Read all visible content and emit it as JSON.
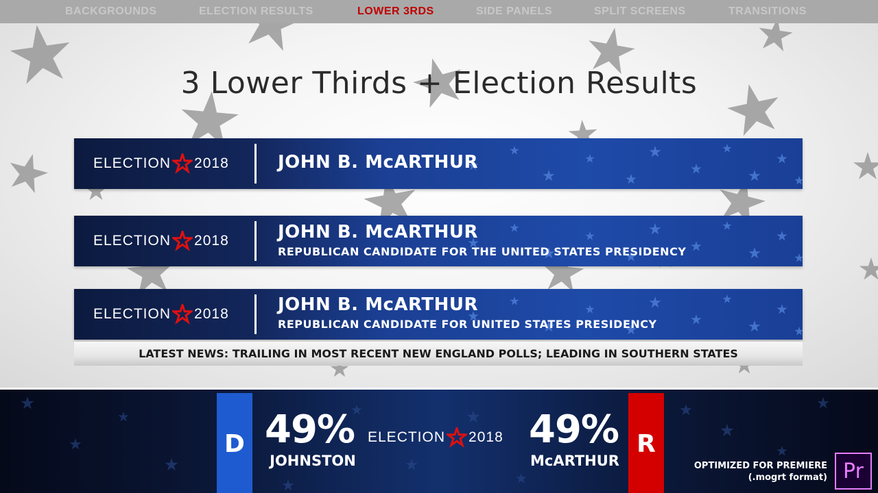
{
  "nav": {
    "tabs": [
      {
        "label": "BACKGROUNDS"
      },
      {
        "label": "ELECTION RESULTS"
      },
      {
        "label": "LOWER 3RDS"
      },
      {
        "label": "SIDE PANELS"
      },
      {
        "label": "SPLIT SCREENS"
      },
      {
        "label": "TRANSITIONS"
      }
    ],
    "active_label": "LOWER 3RDS"
  },
  "headline": "3 Lower Thirds + Election Results",
  "brand": {
    "election": "ELECTION",
    "year": "2018",
    "star_icon": "red-star-icon"
  },
  "lower_thirds": [
    {
      "name": "JOHN B. McARTHUR"
    },
    {
      "name": "JOHN B. McARTHUR",
      "subtitle": "REPUBLICAN CANDIDATE FOR THE UNITED STATES PRESIDENCY"
    },
    {
      "name": "JOHN B. McARTHUR",
      "subtitle": "REPUBLICAN CANDIDATE FOR UNITED STATES PRESIDENCY"
    }
  ],
  "ticker": "LATEST NEWS: TRAILING IN MOST RECENT NEW ENGLAND POLLS; LEADING IN SOUTHERN STATES",
  "results": {
    "dem": {
      "letter": "D",
      "percent": "49%",
      "name": "JOHNSTON",
      "color": "#1f5bd0"
    },
    "rep": {
      "letter": "R",
      "percent": "49%",
      "name": "McARTHUR",
      "color": "#d40000"
    }
  },
  "footer": {
    "line1": "OPTIMIZED FOR PREMIERE",
    "line2": "(.mogrt format)",
    "app_icon": "Pr"
  },
  "colors": {
    "accent_red": "#c00000",
    "nav_bg": "#a9a9a9",
    "lt_blue": "#1e4aa8"
  }
}
